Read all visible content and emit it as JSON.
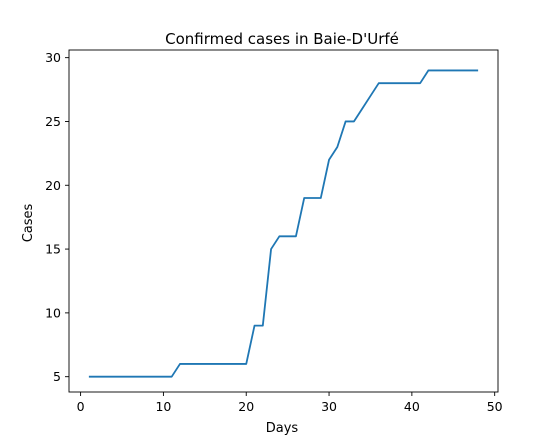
{
  "chart_data": {
    "type": "line",
    "title": "Confirmed cases in Baie-D'Urfé",
    "xlabel": "Days",
    "ylabel": "Cases",
    "xlim": [
      -1.4,
      50.4
    ],
    "ylim": [
      3.8,
      30.6
    ],
    "xticks": [
      0,
      10,
      20,
      30,
      40,
      50
    ],
    "yticks": [
      5,
      10,
      15,
      20,
      25,
      30
    ],
    "grid": false,
    "line_color": "#1f77b4",
    "series": [
      {
        "x": [
          1,
          2,
          3,
          4,
          5,
          6,
          7,
          8,
          9,
          10,
          11,
          12,
          13,
          14,
          15,
          16,
          17,
          18,
          19,
          20,
          21,
          22,
          23,
          24,
          25,
          26,
          27,
          28,
          29,
          30,
          31,
          32,
          33,
          34,
          35,
          36,
          37,
          38,
          39,
          40,
          41,
          42,
          43,
          44,
          45,
          46,
          47,
          48
        ],
        "values": [
          5,
          5,
          5,
          5,
          5,
          5,
          5,
          5,
          5,
          5,
          5,
          6,
          6,
          6,
          6,
          6,
          6,
          6,
          6,
          6,
          9,
          9,
          15,
          16,
          16,
          16,
          19,
          19,
          19,
          22,
          23,
          25,
          25,
          26,
          27,
          28,
          28,
          28,
          28,
          28,
          28,
          29,
          29,
          29,
          29,
          29,
          29,
          29
        ]
      }
    ]
  }
}
